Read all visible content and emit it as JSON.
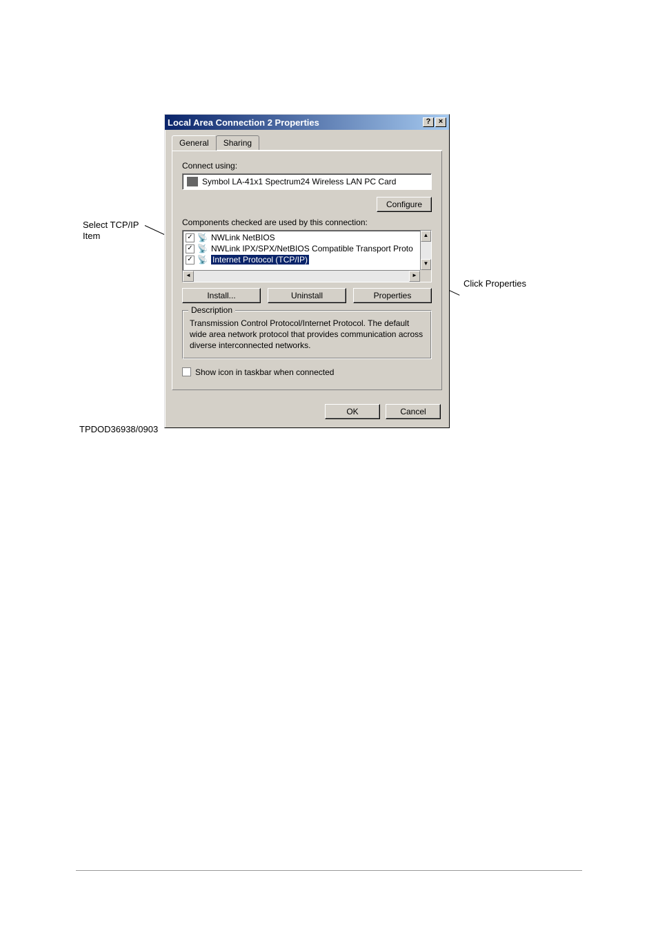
{
  "annotations": {
    "left_line1": "Select TCP/IP",
    "left_line2": "Item",
    "right": "Click Properties"
  },
  "dialog": {
    "title": "Local Area Connection 2 Properties",
    "help_glyph": "?",
    "close_glyph": "×",
    "tabs": {
      "general": "General",
      "sharing": "Sharing"
    },
    "connect_using_label": "Connect using:",
    "adapter": "Symbol LA-41x1 Spectrum24 Wireless LAN PC Card",
    "configure_btn": "Configure",
    "components_label": "Components checked are used by this connection:",
    "items": [
      {
        "checked": true,
        "label": "NWLink NetBIOS"
      },
      {
        "checked": true,
        "label": "NWLink IPX/SPX/NetBIOS Compatible Transport Proto"
      },
      {
        "checked": true,
        "label": "Internet Protocol (TCP/IP)",
        "selected": true
      }
    ],
    "install_btn": "Install...",
    "uninstall_btn": "Uninstall",
    "properties_btn": "Properties",
    "description_label": "Description",
    "description_text": "Transmission Control Protocol/Internet Protocol. The default wide area network protocol that provides communication across diverse interconnected networks.",
    "taskbar_checkbox": "Show icon in taskbar when connected",
    "ok_btn": "OK",
    "cancel_btn": "Cancel"
  },
  "footnote": "TPDOD36938/0903",
  "colors": {
    "titlebar_start": "#0a246a",
    "titlebar_end": "#a6caf0",
    "dialog_bg": "#d4d0c8",
    "selection_bg": "#0a246a",
    "selection_fg": "#ffffff",
    "page_bg": "#ffffff"
  }
}
